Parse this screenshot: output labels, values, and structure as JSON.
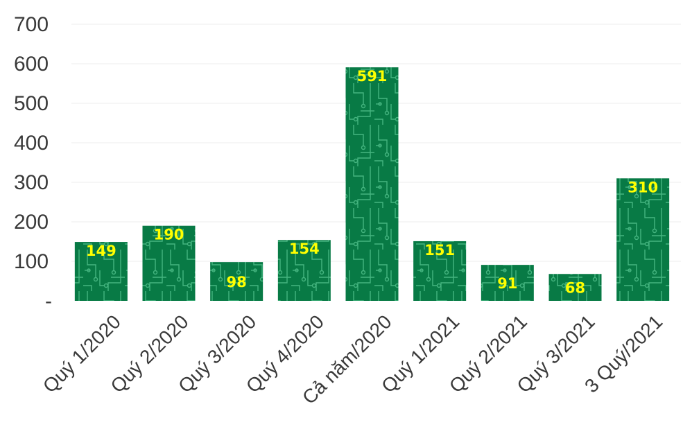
{
  "chart_data": {
    "type": "bar",
    "title": "",
    "xlabel": "",
    "ylabel": "",
    "categories": [
      "Quý 1/2020",
      "Quý 2/2020",
      "Quý 3/2020",
      "Quý 4/2020",
      "Cả năm/2020",
      "Quý 1/2021",
      "Quý 2/2021",
      "Quý 3/2021",
      "3 Quý/2021"
    ],
    "values": [
      149,
      190,
      98,
      154,
      591,
      151,
      91,
      68,
      310
    ],
    "data_labels": [
      "149",
      "190",
      "98",
      "154",
      "591",
      "151",
      "91",
      "68",
      "310"
    ],
    "ylim": [
      0,
      700
    ],
    "yticks": [
      0,
      100,
      200,
      300,
      400,
      500,
      600,
      700
    ],
    "ytick_labels": [
      "-",
      "100",
      "200",
      "300",
      "400",
      "500",
      "600",
      "700"
    ],
    "grid": true,
    "legend": "none",
    "colors": {
      "bar": "#087a45",
      "bar_pattern": "#4fbf8a",
      "data_label": "#ffff00",
      "axis_text": "#3a3a3a",
      "grid": "#ececec"
    }
  }
}
